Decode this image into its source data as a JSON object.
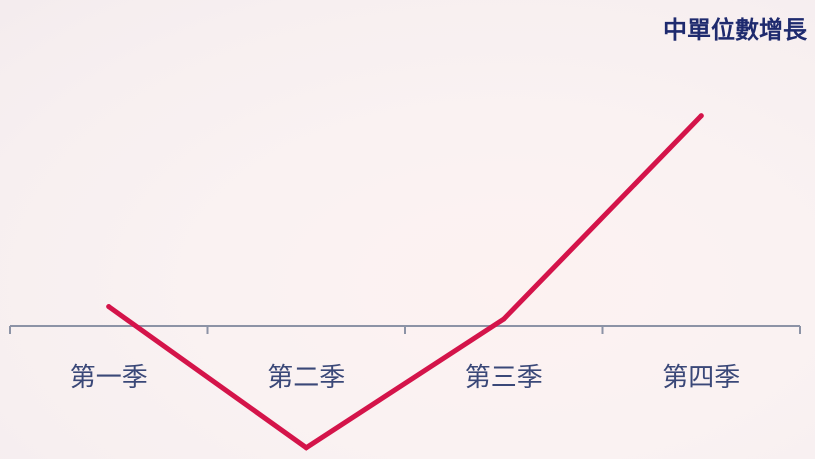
{
  "chart_data": {
    "type": "line",
    "title": "",
    "categories": [
      "第一季",
      "第二季",
      "第三季",
      "第四季"
    ],
    "series": [
      {
        "name": "中單位數增長",
        "values": [
          -0.5,
          -2.2,
          -0.65,
          1.8
        ]
      }
    ],
    "xlabel": "",
    "ylabel": "",
    "ylim": [
      -2.3,
      2.4
    ],
    "grid": false,
    "legend": "none",
    "annotations": [
      {
        "text": "中單位數增長",
        "position": "top-right"
      }
    ],
    "colors": {
      "line": "#d4144a",
      "axis": "#8c93a6",
      "tick_label": "#3a4878",
      "annotation": "#1e2a6e"
    }
  }
}
